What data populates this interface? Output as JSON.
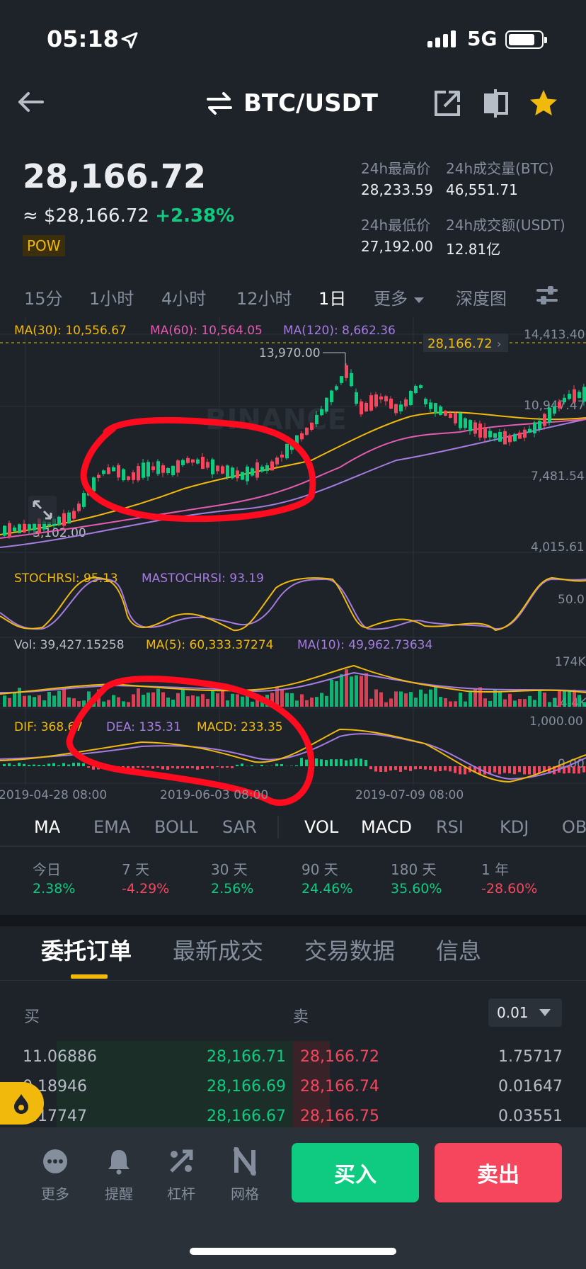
{
  "status": {
    "time": "05:18",
    "network": "5G"
  },
  "nav": {
    "pair": "BTC/USDT"
  },
  "price": {
    "last": "28,166.72",
    "fiat": "≈ $28,166.72",
    "change": "+2.38%",
    "tag": "POW"
  },
  "stats": {
    "high_label": "24h最高价",
    "high": "28,233.59",
    "vol_btc_label": "24h成交量(BTC)",
    "vol_btc": "46,551.71",
    "low_label": "24h最低价",
    "low": "27,192.00",
    "vol_usdt_label": "24h成交额(USDT)",
    "vol_usdt": "12.81亿"
  },
  "timeframes": [
    "15分",
    "1小时",
    "4小时",
    "12小时",
    "1日",
    "更多",
    "深度图"
  ],
  "chart": {
    "ma30": "MA(30): 10,556.67",
    "ma60": "MA(60): 10,564.05",
    "ma120": "MA(120): 8,662.36",
    "price_tag": "28,166.72",
    "y_labels": [
      "14,413.40",
      "10,947.47",
      "7,481.54",
      "4,015.61"
    ],
    "high_mark": "13,970.00",
    "low_mark": "3,102.00",
    "watermark": "BINANCE",
    "stoch": "STOCHRSI: 95.13",
    "mastoch": "MASTOCHRSI: 93.19",
    "stoch_mid": "50.0",
    "vol": "Vol: 39,427.15258",
    "vol_ma5": "MA(5): 60,333.37274",
    "vol_ma10": "MA(10): 49,962.73634",
    "vol_y1": "174K",
    "vol_y2": "14.4K",
    "dif": "DIF: 368.67",
    "dea": "DEA: 135.31",
    "macd": "MACD: 233.35",
    "macd_y1": "1,000.00",
    "macd_y2": "0.00",
    "dates": [
      "2019-04-28 08:00",
      "2019-06-03 08:00",
      "2019-07-09 08:00"
    ]
  },
  "indicators": [
    "MA",
    "EMA",
    "BOLL",
    "SAR",
    "VOL",
    "MACD",
    "RSI",
    "KDJ",
    "OB"
  ],
  "performance": [
    {
      "label": "今日",
      "value": "2.38%",
      "dir": "up"
    },
    {
      "label": "7 天",
      "value": "-4.29%",
      "dir": "down"
    },
    {
      "label": "30 天",
      "value": "2.56%",
      "dir": "up"
    },
    {
      "label": "90 天",
      "value": "24.46%",
      "dir": "up"
    },
    {
      "label": "180 天",
      "value": "35.60%",
      "dir": "up"
    },
    {
      "label": "1 年",
      "value": "-28.60%",
      "dir": "down"
    }
  ],
  "order_tabs": [
    "委托订单",
    "最新成交",
    "交易数据",
    "信息"
  ],
  "orderbook": {
    "buy_label": "买",
    "sell_label": "卖",
    "precision": "0.01",
    "rows": [
      {
        "bid_qty": "11.06886",
        "bid": "28,166.71",
        "ask": "28,166.72",
        "ask_qty": "1.75717"
      },
      {
        "bid_qty": "0.18946",
        "bid": "28,166.69",
        "ask": "28,166.74",
        "ask_qty": "0.01647"
      },
      {
        "bid_qty": "0.17747",
        "bid": "28,166.67",
        "ask": "28,166.75",
        "ask_qty": "0.03551"
      }
    ]
  },
  "bottom_nav": [
    "更多",
    "提醒",
    "杠杆",
    "网格"
  ],
  "actions": {
    "buy": "买入",
    "sell": "卖出"
  },
  "colors": {
    "up": "#0ecb81",
    "down": "#f6465d",
    "accent": "#f0b90b",
    "bg": "#1e2329"
  }
}
